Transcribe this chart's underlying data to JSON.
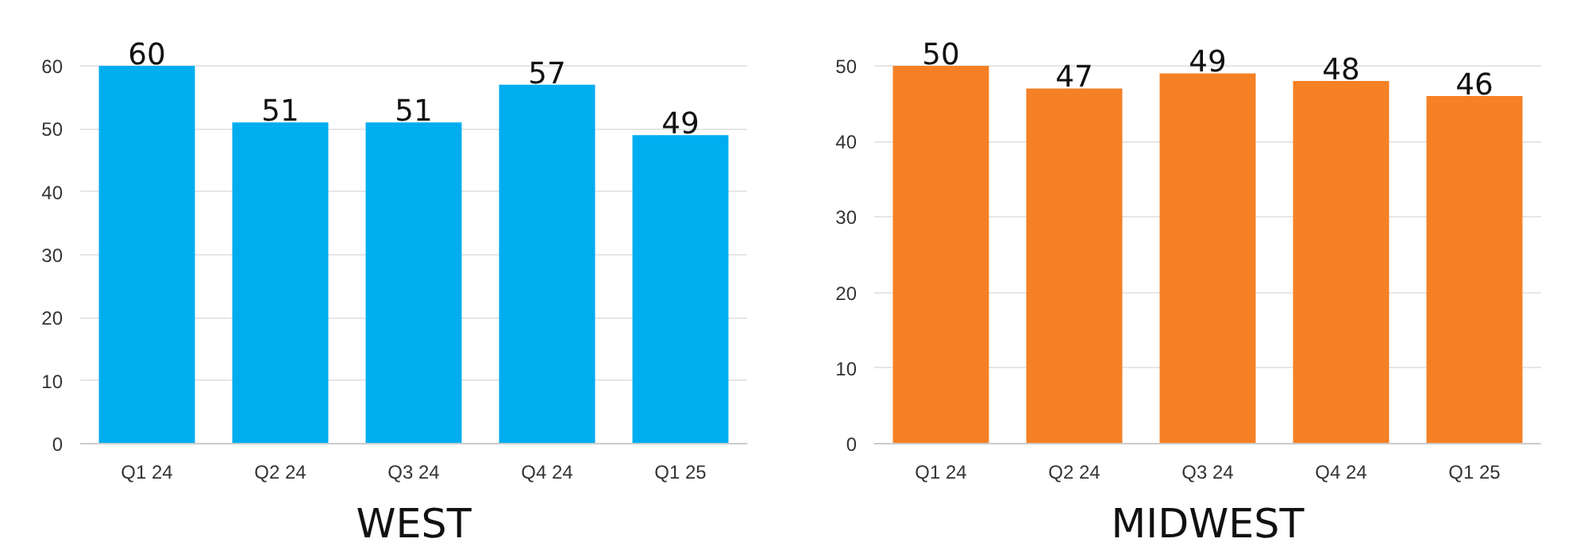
{
  "chart_data": [
    {
      "type": "bar",
      "title": "WEST",
      "categories": [
        "Q1 24",
        "Q2 24",
        "Q3 24",
        "Q4 24",
        "Q1 25"
      ],
      "values": [
        60,
        51,
        51,
        57,
        49
      ],
      "color": "#00adef",
      "ylim": [
        0,
        60
      ],
      "yticks": [
        0,
        10,
        20,
        30,
        40,
        50,
        60
      ],
      "grid": "y",
      "data_labels": true
    },
    {
      "type": "bar",
      "title": "MIDWEST",
      "categories": [
        "Q1 24",
        "Q2 24",
        "Q3 24",
        "Q4 24",
        "Q1 25"
      ],
      "values": [
        50,
        47,
        49,
        48,
        46
      ],
      "color": "#f58025",
      "ylim": [
        0,
        50
      ],
      "yticks": [
        0,
        10,
        20,
        30,
        40,
        50
      ],
      "grid": "y",
      "data_labels": true
    }
  ]
}
